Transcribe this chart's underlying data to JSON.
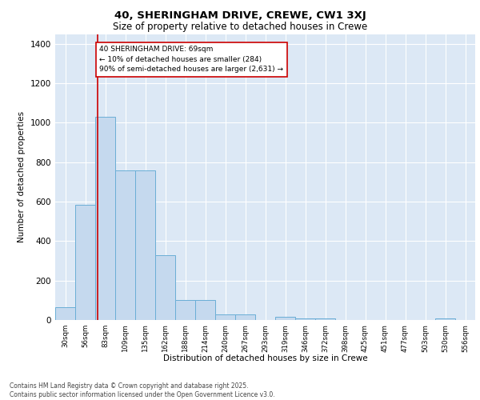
{
  "title1": "40, SHERINGHAM DRIVE, CREWE, CW1 3XJ",
  "title2": "Size of property relative to detached houses in Crewe",
  "xlabel": "Distribution of detached houses by size in Crewe",
  "ylabel": "Number of detached properties",
  "categories": [
    "30sqm",
    "56sqm",
    "83sqm",
    "109sqm",
    "135sqm",
    "162sqm",
    "188sqm",
    "214sqm",
    "240sqm",
    "267sqm",
    "293sqm",
    "319sqm",
    "346sqm",
    "372sqm",
    "398sqm",
    "425sqm",
    "451sqm",
    "477sqm",
    "503sqm",
    "530sqm",
    "556sqm"
  ],
  "values": [
    65,
    585,
    1030,
    760,
    760,
    330,
    100,
    100,
    30,
    30,
    0,
    15,
    10,
    8,
    0,
    0,
    0,
    0,
    0,
    8,
    0
  ],
  "bar_color": "#c5d9ee",
  "bar_edge_color": "#6aaed6",
  "red_line_x": 1.62,
  "annotation_text": "40 SHERINGHAM DRIVE: 69sqm\n← 10% of detached houses are smaller (284)\n90% of semi-detached houses are larger (2,631) →",
  "annotation_box_color": "#ffffff",
  "annotation_box_edge": "#cc0000",
  "annotation_text_color": "#000000",
  "red_line_color": "#cc0000",
  "background_color": "#dce8f5",
  "grid_color": "#ffffff",
  "ylim": [
    0,
    1450
  ],
  "yticks": [
    0,
    200,
    400,
    600,
    800,
    1000,
    1200,
    1400
  ],
  "footer1": "Contains HM Land Registry data © Crown copyright and database right 2025.",
  "footer2": "Contains public sector information licensed under the Open Government Licence v3.0."
}
